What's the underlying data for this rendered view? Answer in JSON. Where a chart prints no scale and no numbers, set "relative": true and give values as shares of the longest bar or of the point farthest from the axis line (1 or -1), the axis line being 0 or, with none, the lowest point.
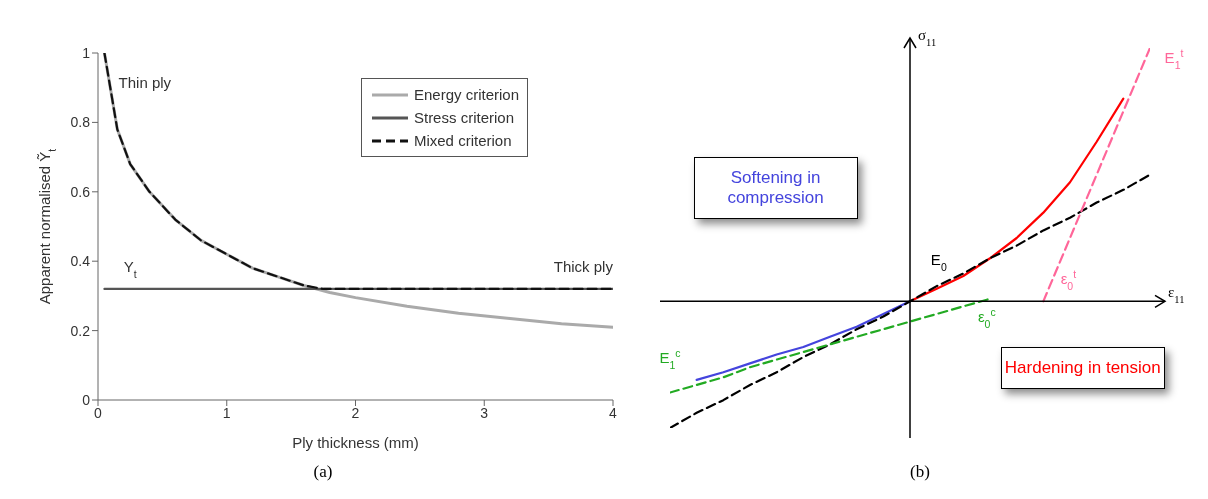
{
  "chart_data": [
    {
      "type": "line",
      "xlabel": "Ply thickness (mm)",
      "ylabel": "Apparent normalised Ỹ$_{t}$",
      "xlim": [
        0,
        4
      ],
      "ylim": [
        0,
        1
      ],
      "xticks": [
        0,
        1,
        2,
        3,
        4
      ],
      "yticks": [
        0,
        0.2,
        0.4,
        0.6,
        0.8,
        1
      ],
      "legend": "top right",
      "series": [
        {
          "name": "Energy criterion",
          "color": "#aaaaaa",
          "line_style": "solid",
          "x": [
            0.05,
            0.15,
            0.25,
            0.4,
            0.6,
            0.8,
            1.0,
            1.2,
            1.4,
            1.6,
            1.8,
            2.0,
            2.4,
            2.8,
            3.2,
            3.6,
            4.0
          ],
          "values": [
            1,
            0.78,
            0.68,
            0.6,
            0.52,
            0.46,
            0.42,
            0.38,
            0.355,
            0.33,
            0.31,
            0.295,
            0.27,
            0.25,
            0.235,
            0.22,
            0.21
          ]
        },
        {
          "name": "Stress criterion",
          "color": "#555555",
          "line_style": "solid",
          "x": [
            0.05,
            4
          ],
          "values": [
            0.32,
            0.32
          ]
        },
        {
          "name": "Mixed criterion",
          "color": "#111111",
          "line_style": "dashed",
          "x": [
            0.05,
            0.15,
            0.25,
            0.4,
            0.6,
            0.8,
            1.0,
            1.2,
            1.4,
            1.6,
            1.75,
            4.0
          ],
          "values": [
            1,
            0.78,
            0.68,
            0.6,
            0.52,
            0.46,
            0.42,
            0.38,
            0.355,
            0.33,
            0.32,
            0.32
          ]
        }
      ],
      "annotations": [
        "Thin ply",
        "Y$_{t}$",
        "Thick ply",
        "(a)"
      ]
    },
    {
      "type": "line",
      "relative": true,
      "xlabel": "ε$_{11}$",
      "ylabel": "σ$_{11}$",
      "categories": [
        null,
        null,
        null,
        null,
        null,
        null,
        null,
        null,
        null,
        null,
        null,
        null,
        null,
        null,
        null,
        null,
        null,
        null,
        null
      ],
      "series": [
        {
          "color": "#ff0000",
          "line_style": "solid",
          "values": [
            null,
            null,
            null,
            null,
            null,
            null,
            null,
            null,
            null,
            0,
            0.05,
            0.1,
            0.17,
            0.25,
            0.35,
            0.47,
            0.63,
            0.8,
            null
          ]
        },
        {
          "color": "#4444dd",
          "line_style": "solid",
          "values": [
            null,
            -0.31,
            -0.28,
            -0.245,
            -0.21,
            -0.18,
            -0.14,
            -0.1,
            -0.05,
            0,
            null,
            null,
            null,
            null,
            null,
            null,
            null,
            null,
            null
          ]
        },
        {
          "color": "#000000",
          "line_style": "dashed",
          "values": [
            -0.5,
            -0.44,
            -0.39,
            -0.33,
            -0.28,
            -0.22,
            -0.17,
            -0.11,
            -0.06,
            0,
            0.06,
            0.11,
            0.17,
            0.22,
            0.28,
            0.33,
            0.39,
            0.44,
            0.5
          ]
        },
        {
          "color": "#22aa22",
          "line_style": "dashed",
          "values": [
            -0.36,
            -0.33,
            -0.3,
            -0.26,
            -0.23,
            -0.2,
            -0.17,
            -0.14,
            -0.11,
            -0.08,
            -0.05,
            -0.02,
            0.01,
            null,
            null,
            null,
            null,
            null,
            null
          ]
        },
        {
          "color": "#ff6699",
          "line_style": "dashed",
          "values": [
            null,
            null,
            null,
            null,
            null,
            null,
            null,
            null,
            null,
            null,
            null,
            null,
            null,
            null,
            0,
            0.25,
            0.5,
            0.75,
            1
          ]
        }
      ],
      "annotations": [
        "E$_{0}$",
        "E$_{1}$$^{t}$",
        "E$_{1}$$^{c}$",
        "ε$_{0}$$^{t}$",
        "ε$_{0}$$^{c}$",
        "Softening in compression",
        "Hardening in tension",
        "(b)"
      ]
    }
  ]
}
